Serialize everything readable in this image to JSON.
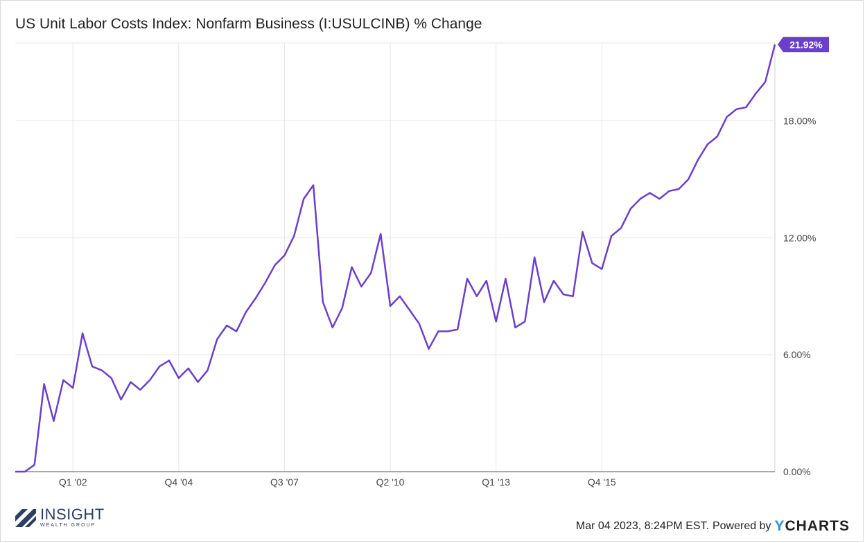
{
  "chart_data": {
    "type": "line",
    "title": "US Unit Labor Costs Index: Nonfarm Business (I:USULCINB) % Change",
    "x_labels": [
      "Q1 '02",
      "Q4 '04",
      "Q3 '07",
      "Q2 '10",
      "Q1 '13",
      "Q4 '15"
    ],
    "y_ticks": [
      "0.00%",
      "6.00%",
      "12.00%",
      "18.00%"
    ],
    "ylim": [
      0,
      22
    ],
    "grid": true,
    "last_value_label": "21.92%",
    "series": [
      {
        "values": [
          0.0,
          0.0,
          0.35,
          4.5,
          2.6,
          4.7,
          4.3,
          7.1,
          5.4,
          5.2,
          4.8,
          3.7,
          4.6,
          4.2,
          4.7,
          5.4,
          5.7,
          4.8,
          5.3,
          4.6,
          5.2,
          6.8,
          7.5,
          7.2,
          8.2,
          8.9,
          9.7,
          10.6,
          11.1,
          12.1,
          14.0,
          14.7,
          8.7,
          7.4,
          8.4,
          10.5,
          9.5,
          10.2,
          12.2,
          8.5,
          9.0,
          8.3,
          7.6,
          6.3,
          7.2,
          7.2,
          7.3,
          9.9,
          9.0,
          9.8,
          7.7,
          9.9,
          7.4,
          7.7,
          11.0,
          8.7,
          9.8,
          9.1,
          9.0,
          12.3,
          10.7,
          10.4,
          12.1,
          12.5,
          13.5,
          14.0,
          14.3,
          14.0,
          14.4,
          14.5,
          15.0,
          16.0,
          16.8,
          17.2,
          18.2,
          18.6,
          18.7,
          19.4,
          20.0,
          21.92
        ]
      }
    ],
    "colors": {
      "line": "#6a3fcc",
      "grid": "#e6e6e6",
      "label_bg": "#6a3fcc"
    }
  },
  "footer": {
    "timestamp": "Mar 04 2023, 8:24PM EST.",
    "powered_by": "Powered by",
    "brand_y": "Y",
    "brand_rest": "CHARTS"
  },
  "logo": {
    "name": "INSIGHT",
    "tagline": "WEALTH GROUP"
  }
}
